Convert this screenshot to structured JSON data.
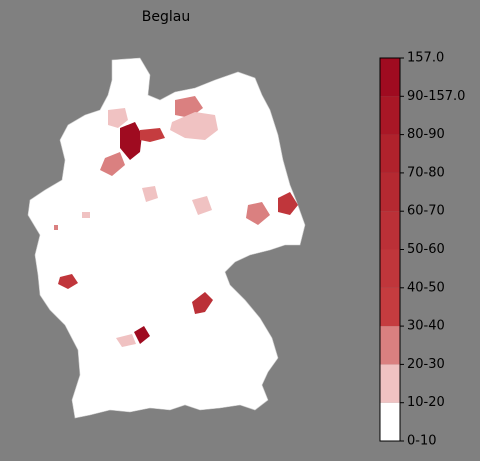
{
  "title": "Beglau",
  "colorbar": {
    "labels": [
      "0-10",
      "10-20",
      "20-30",
      "30-40",
      "40-50",
      "50-60",
      "60-70",
      "70-80",
      "80-90",
      "90-157.0",
      "157.0"
    ],
    "colors": [
      "#ffffff",
      "#f0c2c2",
      "#da8080",
      "#c53c3f",
      "#c0363b",
      "#bb3037",
      "#b52931",
      "#b0222c",
      "#a91726",
      "#9f0b20"
    ]
  }
}
